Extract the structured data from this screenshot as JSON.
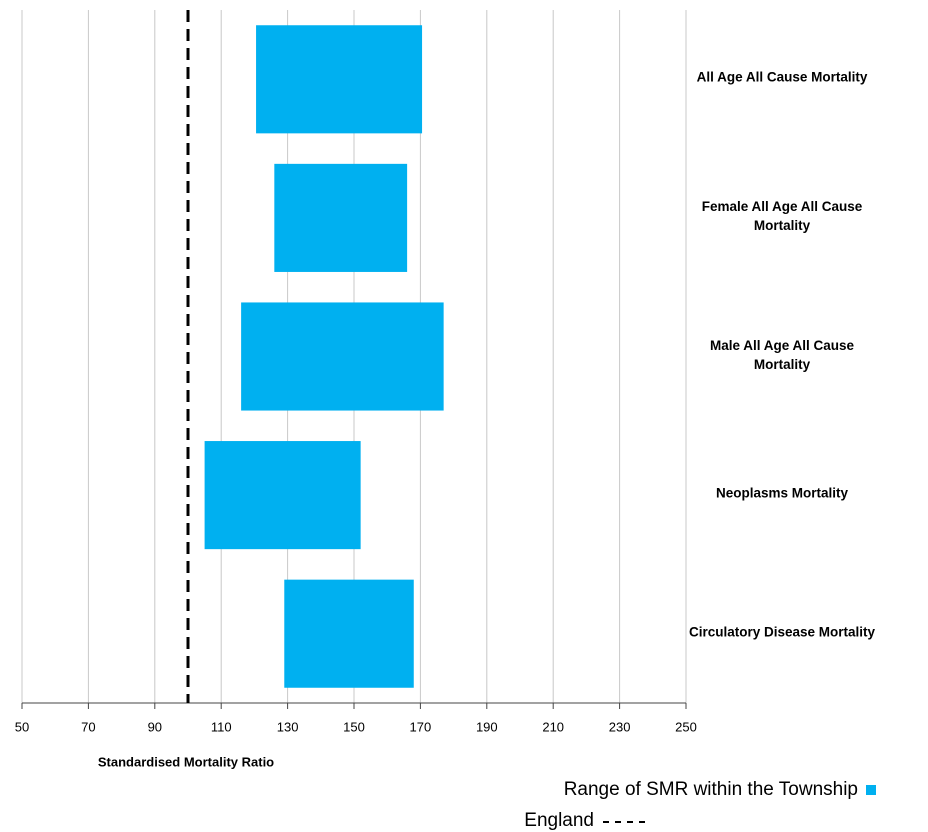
{
  "chart_data": {
    "type": "rangebar",
    "categories": [
      "All Age All Cause Mortality",
      "Female All Age All Cause Mortality",
      "Male All Age All Cause Mortality",
      "Neoplasms Mortality",
      "Circulatory Disease Mortality"
    ],
    "series": [
      {
        "name": "Range of SMR within the Township",
        "color": "#00b0f0",
        "low": [
          120.5,
          126,
          116,
          105,
          129
        ],
        "high": [
          170.5,
          166,
          177,
          152,
          168
        ]
      }
    ],
    "reference_lines": [
      {
        "name": "England",
        "value": 100,
        "color": "#000000",
        "style": "dashed"
      }
    ],
    "xlabel": "Standardised Mortality Ratio",
    "xlim": [
      50,
      250
    ],
    "xticks": [
      50,
      70,
      90,
      110,
      130,
      150,
      170,
      190,
      210,
      230,
      250
    ],
    "grid": true
  }
}
